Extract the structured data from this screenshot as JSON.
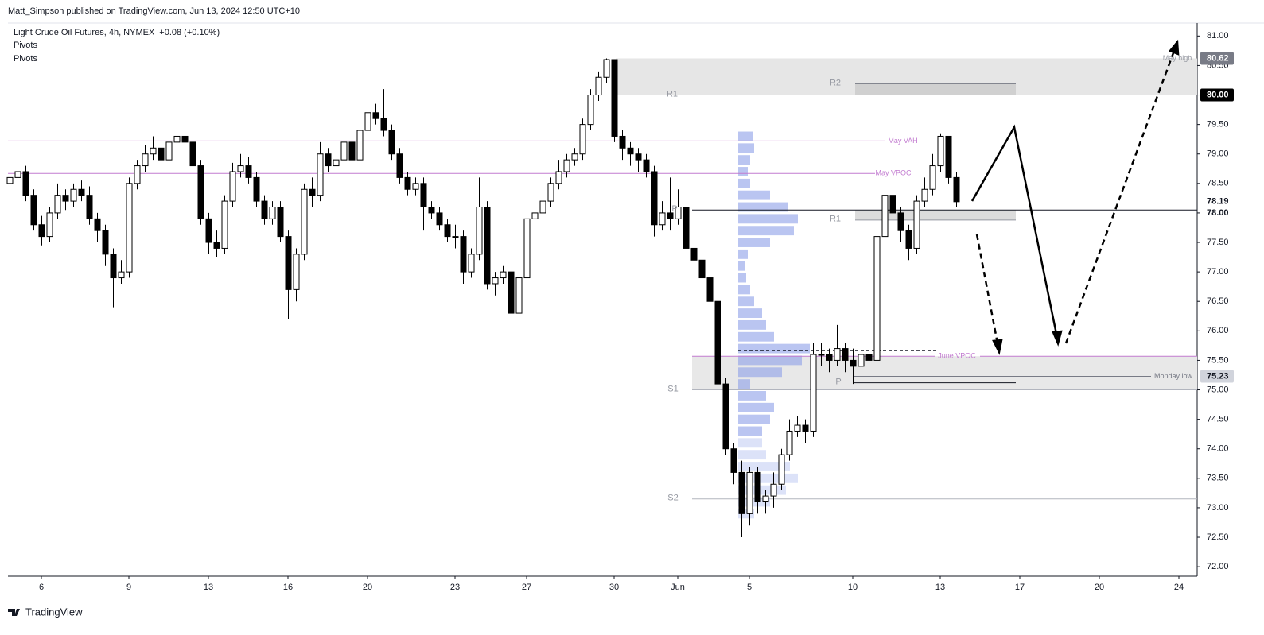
{
  "header": {
    "byline": "Matt_Simpson published on TradingView.com, Jun 13, 2024 12:50 UTC+10",
    "footer": "TradingView"
  },
  "chart_data": {
    "type": "candlestick",
    "title": "Light Crude Oil Futures, 4h, NYMEX",
    "change": "+0.08 (+0.10%)",
    "indicators": [
      "Pivots",
      "Pivots"
    ],
    "categories": [
      null,
      null,
      null,
      null,
      "6",
      null,
      null,
      null,
      null,
      null,
      null,
      null,
      null,
      null,
      null,
      "9",
      null,
      null,
      null,
      null,
      null,
      null,
      null,
      null,
      null,
      "13",
      null,
      null,
      null,
      null,
      null,
      null,
      null,
      null,
      null,
      "16",
      null,
      null,
      null,
      null,
      null,
      null,
      null,
      null,
      null,
      "20",
      null,
      null,
      null,
      null,
      null,
      null,
      null,
      null,
      null,
      null,
      "23",
      null,
      null,
      null,
      null,
      null,
      null,
      null,
      null,
      "27",
      null,
      null,
      null,
      null,
      null,
      null,
      null,
      null,
      null,
      null,
      "30",
      null,
      null,
      null,
      null,
      null,
      null,
      null,
      "Jun",
      null,
      null,
      null,
      null,
      null,
      null,
      null,
      null,
      "5",
      null,
      null,
      null,
      null,
      null,
      null,
      null,
      null,
      null,
      null,
      null,
      null,
      "10",
      null,
      null,
      null,
      null,
      null,
      null,
      null,
      null,
      null,
      null,
      "13",
      null,
      null,
      null,
      null,
      null,
      null,
      null,
      null,
      null,
      "17",
      null,
      null,
      null,
      null,
      null,
      null,
      null,
      null,
      null,
      "20",
      null,
      null,
      null,
      null,
      null,
      null,
      null,
      null,
      null,
      "24",
      null,
      null
    ],
    "open": [
      78.5,
      78.6,
      78.7,
      78.3,
      77.8,
      77.6,
      78.0,
      78.3,
      78.2,
      78.4,
      78.3,
      77.9,
      77.7,
      77.3,
      76.9,
      77.0,
      78.5,
      78.8,
      79.0,
      79.1,
      78.9,
      79.2,
      79.3,
      79.2,
      78.8,
      77.9,
      77.5,
      77.4,
      78.2,
      78.7,
      78.8,
      78.6,
      78.2,
      77.9,
      78.1,
      77.6,
      76.7,
      77.3,
      78.4,
      78.3,
      79.0,
      78.8,
      78.9,
      79.2,
      78.9,
      79.4,
      79.7,
      79.6,
      79.4,
      79.0,
      78.6,
      78.4,
      78.5,
      78.1,
      78.0,
      77.8,
      77.6,
      77.6,
      77.0,
      77.3,
      78.1,
      76.8,
      76.9,
      77.0,
      76.3,
      76.9,
      77.9,
      78.0,
      78.2,
      78.5,
      78.7,
      78.9,
      79.0,
      79.5,
      80.0,
      80.3,
      80.6,
      79.3,
      79.1,
      79.0,
      78.9,
      78.7,
      77.8,
      78.0,
      77.9,
      78.1,
      77.4,
      77.2,
      76.9,
      76.5,
      75.1,
      74.0,
      73.6,
      72.9,
      73.6,
      73.1,
      73.2,
      73.4,
      73.9,
      74.3,
      74.4,
      74.3,
      75.6,
      75.6,
      75.5,
      75.7,
      75.5,
      75.4,
      75.6,
      75.5,
      77.6,
      78.3,
      78.0,
      77.7,
      77.4,
      78.2,
      78.4,
      78.8,
      79.3,
      78.6,
      null,
      null,
      null,
      null,
      null,
      null,
      null,
      null,
      null,
      null,
      null,
      null,
      null,
      null,
      null,
      null,
      null,
      null,
      null,
      null,
      null,
      null,
      null,
      null,
      null,
      null,
      null,
      null,
      null,
      null
    ],
    "high": [
      78.75,
      78.95,
      78.8,
      78.4,
      77.95,
      78.1,
      78.5,
      78.4,
      78.5,
      78.55,
      78.45,
      78.0,
      77.8,
      77.4,
      77.2,
      78.6,
      78.9,
      79.15,
      79.3,
      79.2,
      79.3,
      79.45,
      79.4,
      79.3,
      78.9,
      78.0,
      77.7,
      78.3,
      78.85,
      79.0,
      78.95,
      78.7,
      78.3,
      78.2,
      78.2,
      77.7,
      77.4,
      78.5,
      78.6,
      79.2,
      79.1,
      79.05,
      79.35,
      79.3,
      79.55,
      80.0,
      79.85,
      80.1,
      79.5,
      79.1,
      78.7,
      78.6,
      78.6,
      78.2,
      78.1,
      77.9,
      77.8,
      77.7,
      77.4,
      78.6,
      78.2,
      77.0,
      77.1,
      77.1,
      77.0,
      78.0,
      78.1,
      78.3,
      78.6,
      78.9,
      79.0,
      79.1,
      79.6,
      80.1,
      80.4,
      80.62,
      80.6,
      79.4,
      79.2,
      79.1,
      79.0,
      78.8,
      78.2,
      78.6,
      78.4,
      78.2,
      77.6,
      77.4,
      77.0,
      76.6,
      75.2,
      74.1,
      73.8,
      73.7,
      73.7,
      73.3,
      73.6,
      74.0,
      74.5,
      74.55,
      74.5,
      75.8,
      75.8,
      75.7,
      76.1,
      75.8,
      75.7,
      75.8,
      75.7,
      77.7,
      78.5,
      78.4,
      78.1,
      77.8,
      78.3,
      78.6,
      79.0,
      79.35,
      79.3,
      78.7,
      null,
      null,
      null,
      null,
      null,
      null,
      null,
      null,
      null,
      null,
      null,
      null,
      null,
      null,
      null,
      null,
      null,
      null,
      null,
      null,
      null,
      null,
      null,
      null,
      null,
      null,
      null,
      null,
      null,
      null
    ],
    "low": [
      78.35,
      78.5,
      78.2,
      77.7,
      77.45,
      77.5,
      77.9,
      78.05,
      78.1,
      78.2,
      77.8,
      77.5,
      77.1,
      76.4,
      76.8,
      76.9,
      78.4,
      78.7,
      78.9,
      78.8,
      78.8,
      79.1,
      79.1,
      78.6,
      77.8,
      77.3,
      77.25,
      77.3,
      78.1,
      78.6,
      78.5,
      78.1,
      77.8,
      77.8,
      77.5,
      76.2,
      76.5,
      77.2,
      78.1,
      78.2,
      78.7,
      78.7,
      78.8,
      78.8,
      78.8,
      79.3,
      79.5,
      79.3,
      78.9,
      78.5,
      78.3,
      78.3,
      77.7,
      77.9,
      77.7,
      77.5,
      77.4,
      76.8,
      76.9,
      77.2,
      76.7,
      76.6,
      76.8,
      76.15,
      76.2,
      76.8,
      77.8,
      77.9,
      78.1,
      78.4,
      78.6,
      78.8,
      78.9,
      79.4,
      79.9,
      80.2,
      79.2,
      78.9,
      78.8,
      78.7,
      78.6,
      77.6,
      77.7,
      77.7,
      77.8,
      77.3,
      77.0,
      76.7,
      76.3,
      75.0,
      73.9,
      73.4,
      72.5,
      72.7,
      72.9,
      72.9,
      73.0,
      73.3,
      73.8,
      74.2,
      74.1,
      74.2,
      75.4,
      75.3,
      75.4,
      75.3,
      75.1,
      75.3,
      75.3,
      75.4,
      77.5,
      77.9,
      77.5,
      77.2,
      77.3,
      78.1,
      78.3,
      78.7,
      78.5,
      78.1,
      null,
      null,
      null,
      null,
      null,
      null,
      null,
      null,
      null,
      null,
      null,
      null,
      null,
      null,
      null,
      null,
      null,
      null,
      null,
      null,
      null,
      null,
      null,
      null,
      null,
      null,
      null,
      null,
      null,
      null
    ],
    "close": [
      78.6,
      78.7,
      78.3,
      77.8,
      77.6,
      78.0,
      78.3,
      78.2,
      78.4,
      78.3,
      77.9,
      77.7,
      77.3,
      76.9,
      77.0,
      78.5,
      78.8,
      79.0,
      79.1,
      78.9,
      79.2,
      79.3,
      79.2,
      78.8,
      77.9,
      77.5,
      77.4,
      78.2,
      78.7,
      78.8,
      78.6,
      78.2,
      77.9,
      78.1,
      77.6,
      76.7,
      77.3,
      78.4,
      78.3,
      79.0,
      78.8,
      78.9,
      79.2,
      78.9,
      79.4,
      79.7,
      79.6,
      79.4,
      79.0,
      78.6,
      78.4,
      78.5,
      78.1,
      78.0,
      77.8,
      77.6,
      77.6,
      77.0,
      77.3,
      78.1,
      76.8,
      76.9,
      77.0,
      76.3,
      76.9,
      77.9,
      78.0,
      78.2,
      78.5,
      78.7,
      78.9,
      79.0,
      79.5,
      80.0,
      80.3,
      80.6,
      79.3,
      79.1,
      79.0,
      78.9,
      78.7,
      77.8,
      78.0,
      77.9,
      78.1,
      77.4,
      77.2,
      76.9,
      76.5,
      75.1,
      74.0,
      73.6,
      72.9,
      73.6,
      73.1,
      73.2,
      73.4,
      73.9,
      74.3,
      74.4,
      74.3,
      75.6,
      75.6,
      75.5,
      75.7,
      75.5,
      75.4,
      75.6,
      75.5,
      77.6,
      78.3,
      78.0,
      77.7,
      77.4,
      78.2,
      78.4,
      78.8,
      79.3,
      78.6,
      78.19,
      null,
      null,
      null,
      null,
      null,
      null,
      null,
      null,
      null,
      null,
      null,
      null,
      null,
      null,
      null,
      null,
      null,
      null,
      null,
      null,
      null,
      null,
      null,
      null,
      null,
      null,
      null,
      null,
      null,
      null
    ],
    "up_color": "#ffffff",
    "down_color": "#000000",
    "ylim": [
      71.84,
      81.22
    ],
    "yticks": [
      {
        "value": 72,
        "label": "72.00"
      },
      {
        "value": 72.5,
        "label": "72.50"
      },
      {
        "value": 73,
        "label": "73.00"
      },
      {
        "value": 73.5,
        "label": "73.50"
      },
      {
        "value": 74,
        "label": "74.00"
      },
      {
        "value": 74.5,
        "label": "74.50"
      },
      {
        "value": 75,
        "label": "75.00"
      },
      {
        "value": 75.5,
        "label": "75.50"
      },
      {
        "value": 76,
        "label": "76.00"
      },
      {
        "value": 76.5,
        "label": "76.50"
      },
      {
        "value": 77,
        "label": "77.00"
      },
      {
        "value": 77.5,
        "label": "77.50"
      },
      {
        "value": 78,
        "label": "78.00"
      },
      {
        "value": 78.5,
        "label": "78.50"
      },
      {
        "value": 79,
        "label": "79.00"
      },
      {
        "value": 79.5,
        "label": "79.50"
      },
      {
        "value": 80,
        "label": "80.00"
      },
      {
        "value": 80.5,
        "label": "80.50"
      },
      {
        "value": 81,
        "label": "81.00"
      }
    ],
    "price_tags": [
      80.62,
      {
        "value": 80,
        "label": "80.00"
      },
      78.19,
      {
        "value": 78,
        "label": "78.00"
      },
      75.23
    ],
    "levels": [
      {
        "label": "May high",
        "value": 80.62,
        "color": "#9598a1"
      },
      {
        "label": "May VAH",
        "value": 79.22,
        "color": "#c27bd0"
      },
      {
        "label": "May VPOC",
        "value": 78.67,
        "color": "#c27bd0"
      },
      {
        "label": "June VPOC",
        "value": 75.57,
        "color": "#c27bd0"
      },
      {
        "label": "Monday low",
        "value": 75.23,
        "color": "#787b86"
      }
    ],
    "pivots": [
      {
        "label": "R2",
        "value": 80.19
      },
      {
        "label": "R1",
        "value": 80.0
      },
      {
        "label": "P",
        "value": 78.05
      },
      {
        "label": "S1",
        "value": 75.0
      },
      {
        "label": "S2",
        "value": 73.15
      },
      {
        "label": "R1",
        "value": 77.88
      },
      {
        "label": "P",
        "value": 75.12
      }
    ],
    "volume_profile": {
      "prices": [
        79.3,
        79.1,
        78.9,
        78.7,
        78.5,
        78.3,
        78.1,
        77.9,
        77.7,
        77.5,
        77.3,
        77.1,
        76.9,
        76.7,
        76.5,
        76.3,
        76.1,
        75.9,
        75.7,
        75.5,
        75.3,
        75.1,
        74.9,
        74.7,
        74.5,
        74.3,
        74.1,
        73.9,
        73.7,
        73.5,
        73.3,
        73.1,
        72.9
      ],
      "volumes": [
        18,
        20,
        15,
        12,
        15,
        40,
        62,
        75,
        70,
        40,
        12,
        8,
        10,
        15,
        20,
        30,
        35,
        45,
        90,
        80,
        55,
        15,
        35,
        45,
        40,
        30,
        30,
        35,
        65,
        75,
        60,
        40,
        20
      ],
      "color": "#8c9fe8"
    }
  }
}
